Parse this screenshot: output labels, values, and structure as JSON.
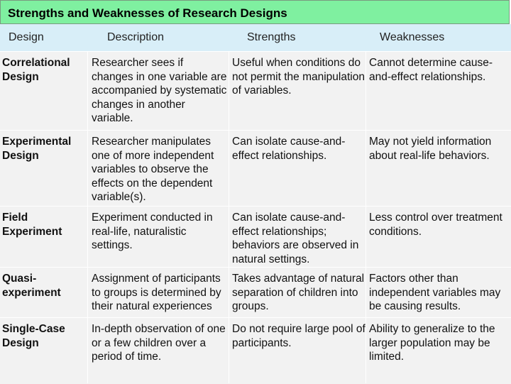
{
  "title": "Strengths and Weaknesses of Research Designs",
  "headers": {
    "design": "Design",
    "description": "Description",
    "strengths": "Strengths",
    "weaknesses": "Weaknesses"
  },
  "rows": [
    {
      "design": "Correlational Design",
      "description": "Researcher sees if changes in one variable are accompanied by systematic changes in another variable.",
      "strengths": "Useful when conditions do not permit the manipulation of variables.",
      "weaknesses": "Cannot determine cause-and-effect relationships."
    },
    {
      "design": "Experimental Design",
      "description": "Researcher manipulates one of more independent variables to observe the effects on the dependent variable(s).",
      "strengths": "Can isolate cause-and-effect relationships.",
      "weaknesses": "May not yield information about real-life behaviors."
    },
    {
      "design": "Field Experiment",
      "description": "Experiment conducted in real-life, naturalistic settings.",
      "strengths": "Can isolate cause-and-effect relationships; behaviors are observed in natural settings.",
      "weaknesses": "Less control over treatment conditions."
    },
    {
      "design": "Quasi-experiment",
      "description": "Assignment of participants to groups is determined by their natural experiences",
      "strengths": "Takes advantage of natural separation of children into groups.",
      "weaknesses": "Factors other than independent variables may be causing results."
    },
    {
      "design": "Single-Case Design",
      "description": "In-depth observation of one or a few children over a period of time.",
      "strengths": "Do not require large pool of participants.",
      "weaknesses": "Ability to generalize to the larger population may be limited."
    }
  ]
}
